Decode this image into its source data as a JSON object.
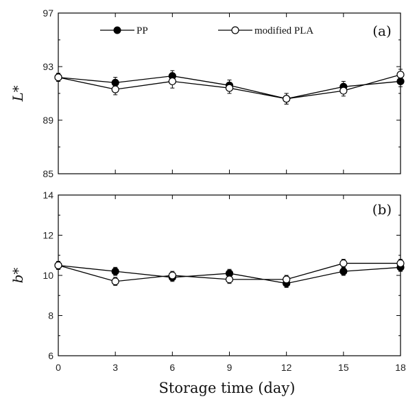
{
  "chart_data": [
    {
      "type": "line",
      "panel_label": "(a)",
      "ylabel": "L*",
      "ylim": [
        85,
        97
      ],
      "yticks": [
        85,
        89,
        93,
        97
      ],
      "x": [
        0,
        3,
        6,
        9,
        12,
        15,
        18
      ],
      "xlim": [
        0,
        18
      ],
      "legend": "top",
      "series": [
        {
          "name": "PP",
          "marker": "filled-circle",
          "values": [
            92.2,
            91.8,
            92.3,
            91.6,
            90.6,
            91.5,
            91.9
          ],
          "errors": [
            0.3,
            0.4,
            0.4,
            0.4,
            0.4,
            0.4,
            0.4
          ]
        },
        {
          "name": "modified PLA",
          "marker": "open-circle",
          "values": [
            92.2,
            91.3,
            91.9,
            91.4,
            90.6,
            91.2,
            92.4
          ],
          "errors": [
            0.3,
            0.4,
            0.5,
            0.4,
            0.4,
            0.4,
            0.4
          ]
        }
      ]
    },
    {
      "type": "line",
      "panel_label": "(b)",
      "ylabel": "b*",
      "ylim": [
        6,
        14
      ],
      "yticks": [
        6,
        8,
        10,
        12,
        14
      ],
      "x": [
        0,
        3,
        6,
        9,
        12,
        15,
        18
      ],
      "xlim": [
        0,
        18
      ],
      "xticks": [
        0,
        3,
        6,
        9,
        12,
        15,
        18
      ],
      "xlabel": "Storage time (day)",
      "series": [
        {
          "name": "PP",
          "marker": "filled-circle",
          "values": [
            10.5,
            10.2,
            9.9,
            10.1,
            9.6,
            10.2,
            10.4
          ],
          "errors": [
            0.2,
            0.2,
            0.2,
            0.2,
            0.2,
            0.2,
            0.2
          ]
        },
        {
          "name": "modified PLA",
          "marker": "open-circle",
          "values": [
            10.5,
            9.7,
            10.0,
            9.8,
            9.8,
            10.6,
            10.6
          ],
          "errors": [
            0.2,
            0.2,
            0.2,
            0.2,
            0.2,
            0.2,
            0.2
          ]
        }
      ]
    }
  ]
}
